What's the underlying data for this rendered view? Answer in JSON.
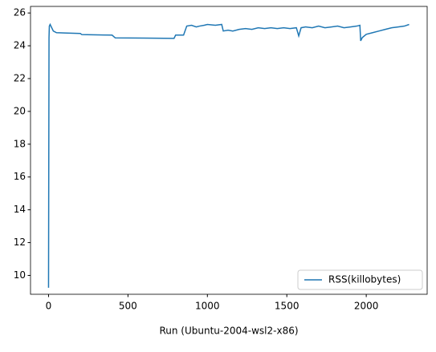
{
  "chart_data": {
    "type": "line",
    "x_label": "Run (Ubuntu-2004-wsl2-x86)",
    "x": [
      0,
      3,
      5,
      10,
      20,
      30,
      50,
      100,
      200,
      210,
      400,
      420,
      600,
      790,
      800,
      850,
      870,
      900,
      930,
      950,
      980,
      1000,
      1050,
      1090,
      1100,
      1130,
      1160,
      1200,
      1240,
      1280,
      1320,
      1360,
      1400,
      1440,
      1480,
      1520,
      1560,
      1575,
      1590,
      1620,
      1660,
      1700,
      1740,
      1780,
      1820,
      1860,
      1900,
      1940,
      1960,
      1965,
      1975,
      2000,
      2040,
      2080,
      2120,
      2160,
      2200,
      2240,
      2270
    ],
    "series": [
      {
        "name": "RSS(killobytes)",
        "color": "#1f77b4",
        "values": [
          9.25,
          24.5,
          25.2,
          25.3,
          25.1,
          24.9,
          24.8,
          24.78,
          24.75,
          24.68,
          24.65,
          24.48,
          24.47,
          24.45,
          24.65,
          24.65,
          25.2,
          25.25,
          25.15,
          25.2,
          25.25,
          25.3,
          25.25,
          25.3,
          24.9,
          24.95,
          24.9,
          25.0,
          25.05,
          25.0,
          25.1,
          25.05,
          25.1,
          25.05,
          25.1,
          25.05,
          25.1,
          24.6,
          25.1,
          25.15,
          25.1,
          25.2,
          25.1,
          25.15,
          25.2,
          25.1,
          25.15,
          25.2,
          25.25,
          24.3,
          24.5,
          24.7,
          24.8,
          24.9,
          25.0,
          25.1,
          25.15,
          25.2,
          25.3
        ]
      }
    ],
    "xlim": [
      -113.5,
      2383.5
    ],
    "xticks": [
      0,
      500,
      1000,
      1500,
      2000
    ],
    "ylim": [
      8.85,
      26.4
    ],
    "yticks": [
      10,
      12,
      14,
      16,
      18,
      20,
      22,
      24,
      26
    ],
    "legend": "lower right"
  }
}
